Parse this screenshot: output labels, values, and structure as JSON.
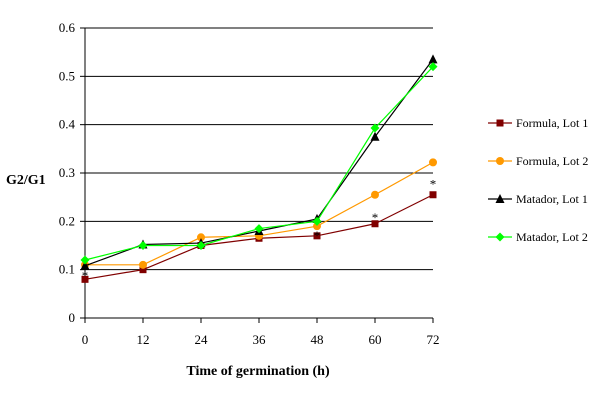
{
  "chart_data": {
    "type": "line",
    "title": "",
    "xlabel": "Time of germination (h)",
    "ylabel": "G2/G1",
    "x": [
      0,
      12,
      24,
      36,
      48,
      60,
      72
    ],
    "x_ticks": [
      "0",
      "12",
      "24",
      "36",
      "48",
      "60",
      "72"
    ],
    "ylim": [
      0,
      0.6
    ],
    "y_ticks": [
      "0",
      "0.1",
      "0.2",
      "0.3",
      "0.4",
      "0.5",
      "0.6"
    ],
    "grid": "horizontal",
    "legend_position": "right",
    "series": [
      {
        "name": "Formula, Lot 1",
        "color": "#800000",
        "marker": "square",
        "values": [
          0.08,
          0.1,
          0.15,
          0.165,
          0.17,
          0.195,
          0.255
        ]
      },
      {
        "name": "Formula, Lot 2",
        "color": "#FF9900",
        "marker": "circle",
        "values": [
          0.11,
          0.11,
          0.167,
          0.17,
          0.19,
          0.255,
          0.322
        ]
      },
      {
        "name": "Matador, Lot 1",
        "color": "#000000",
        "marker": "triangle",
        "values": [
          0.108,
          0.152,
          0.155,
          0.18,
          0.205,
          0.375,
          0.535
        ]
      },
      {
        "name": "Matador, Lot 2",
        "color": "#00FF00",
        "marker": "diamond",
        "values": [
          0.12,
          0.15,
          0.15,
          0.185,
          0.2,
          0.393,
          0.52
        ]
      }
    ],
    "annotations": [
      {
        "text": "*",
        "x": 0,
        "y": 0.095
      },
      {
        "text": "*",
        "x": 48,
        "y": 0.178
      },
      {
        "text": "*",
        "x": 60,
        "y": 0.215
      },
      {
        "text": "*",
        "x": 72,
        "y": 0.285
      }
    ]
  }
}
